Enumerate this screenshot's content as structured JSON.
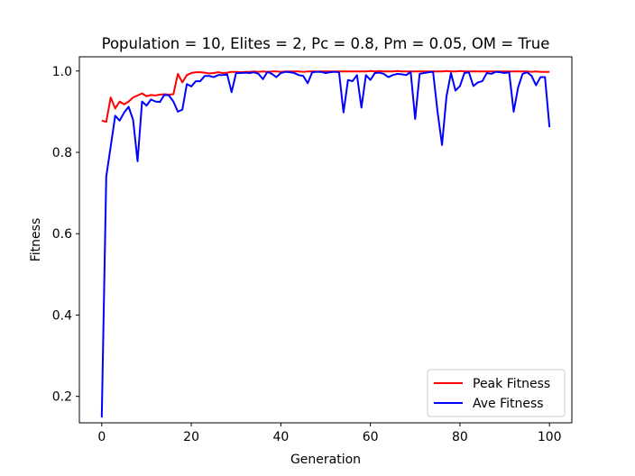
{
  "chart_data": {
    "type": "line",
    "title": "Population = 10, Elites = 2, Pc = 0.8, Pm = 0.05, OM = True",
    "xlabel": "Generation",
    "ylabel": "Fitness",
    "xlim": [
      -5,
      105
    ],
    "ylim": [
      0.135,
      1.035
    ],
    "xticks": [
      0,
      20,
      40,
      60,
      80,
      100
    ],
    "xtick_labels": [
      "0",
      "20",
      "40",
      "60",
      "80",
      "100"
    ],
    "yticks": [
      0.2,
      0.4,
      0.6,
      0.8,
      1.0
    ],
    "ytick_labels": [
      "0.2",
      "0.4",
      "0.6",
      "0.8",
      "1.0"
    ],
    "grid": false,
    "legend_position": "lower-right",
    "series": [
      {
        "name": "Peak Fitness",
        "color": "#ff0000",
        "x": [
          0,
          1,
          2,
          3,
          4,
          5,
          6,
          7,
          8,
          9,
          10,
          11,
          12,
          13,
          14,
          15,
          16,
          17,
          18,
          19,
          20,
          21,
          22,
          23,
          24,
          25,
          26,
          27,
          28,
          29,
          30,
          31,
          32,
          33,
          34,
          35,
          36,
          37,
          38,
          39,
          40,
          41,
          42,
          43,
          44,
          45,
          46,
          47,
          48,
          49,
          50,
          51,
          52,
          53,
          54,
          55,
          56,
          57,
          58,
          59,
          60,
          61,
          62,
          63,
          64,
          65,
          66,
          67,
          68,
          69,
          70,
          71,
          72,
          73,
          74,
          75,
          76,
          77,
          78,
          79,
          80,
          81,
          82,
          83,
          84,
          85,
          86,
          87,
          88,
          89,
          90,
          91,
          92,
          93,
          94,
          95,
          96,
          97,
          98,
          99,
          100
        ],
        "values": [
          0.878,
          0.875,
          0.935,
          0.908,
          0.925,
          0.918,
          0.925,
          0.935,
          0.94,
          0.945,
          0.938,
          0.941,
          0.94,
          0.942,
          0.943,
          0.942,
          0.943,
          0.993,
          0.972,
          0.99,
          0.995,
          0.997,
          0.997,
          0.996,
          0.994,
          0.995,
          0.997,
          0.995,
          0.996,
          0.998,
          0.998,
          0.997,
          0.998,
          0.998,
          0.999,
          0.998,
          0.999,
          0.998,
          0.999,
          0.999,
          0.998,
          0.999,
          0.999,
          0.999,
          0.999,
          0.998,
          0.999,
          0.999,
          0.999,
          0.999,
          0.999,
          0.999,
          0.999,
          0.999,
          0.999,
          0.999,
          0.999,
          0.999,
          0.999,
          0.999,
          1.0,
          0.999,
          1.0,
          0.999,
          0.999,
          0.999,
          1.0,
          0.999,
          0.999,
          0.999,
          0.999,
          0.999,
          0.999,
          0.999,
          0.999,
          0.999,
          0.999,
          1.0,
          0.999,
          0.999,
          1.0,
          0.999,
          0.999,
          0.999,
          0.999,
          0.999,
          0.999,
          0.999,
          0.999,
          0.999,
          0.999,
          0.999,
          0.999,
          0.999,
          0.999,
          0.999,
          0.998,
          0.999,
          0.998,
          0.998,
          0.998
        ]
      },
      {
        "name": "Ave Fitness",
        "color": "#0000ff",
        "x": [
          0,
          1,
          2,
          3,
          4,
          5,
          6,
          7,
          8,
          9,
          10,
          11,
          12,
          13,
          14,
          15,
          16,
          17,
          18,
          19,
          20,
          21,
          22,
          23,
          24,
          25,
          26,
          27,
          28,
          29,
          30,
          31,
          32,
          33,
          34,
          35,
          36,
          37,
          38,
          39,
          40,
          41,
          42,
          43,
          44,
          45,
          46,
          47,
          48,
          49,
          50,
          51,
          52,
          53,
          54,
          55,
          56,
          57,
          58,
          59,
          60,
          61,
          62,
          63,
          64,
          65,
          66,
          67,
          68,
          69,
          70,
          71,
          72,
          73,
          74,
          75,
          76,
          77,
          78,
          79,
          80,
          81,
          82,
          83,
          84,
          85,
          86,
          87,
          88,
          89,
          90,
          91,
          92,
          93,
          94,
          95,
          96,
          97,
          98,
          99,
          100
        ],
        "values": [
          0.148,
          0.74,
          0.815,
          0.89,
          0.878,
          0.898,
          0.912,
          0.88,
          0.778,
          0.925,
          0.915,
          0.93,
          0.925,
          0.924,
          0.942,
          0.94,
          0.925,
          0.9,
          0.905,
          0.968,
          0.962,
          0.975,
          0.975,
          0.988,
          0.988,
          0.985,
          0.99,
          0.99,
          0.992,
          0.948,
          0.995,
          0.995,
          0.996,
          0.995,
          0.997,
          0.993,
          0.98,
          0.998,
          0.993,
          0.985,
          0.995,
          0.998,
          0.997,
          0.995,
          0.99,
          0.988,
          0.97,
          0.997,
          0.998,
          0.998,
          0.995,
          0.997,
          0.998,
          0.997,
          0.898,
          0.978,
          0.975,
          0.99,
          0.91,
          0.99,
          0.978,
          0.995,
          0.996,
          0.993,
          0.985,
          0.99,
          0.993,
          0.992,
          0.99,
          0.998,
          0.882,
          0.993,
          0.995,
          0.997,
          0.998,
          0.9,
          0.818,
          0.938,
          0.995,
          0.952,
          0.963,
          0.995,
          0.997,
          0.963,
          0.972,
          0.975,
          0.995,
          0.993,
          0.998,
          0.997,
          0.995,
          0.997,
          0.9,
          0.96,
          0.993,
          0.997,
          0.988,
          0.965,
          0.985,
          0.985,
          0.862
        ]
      }
    ]
  }
}
